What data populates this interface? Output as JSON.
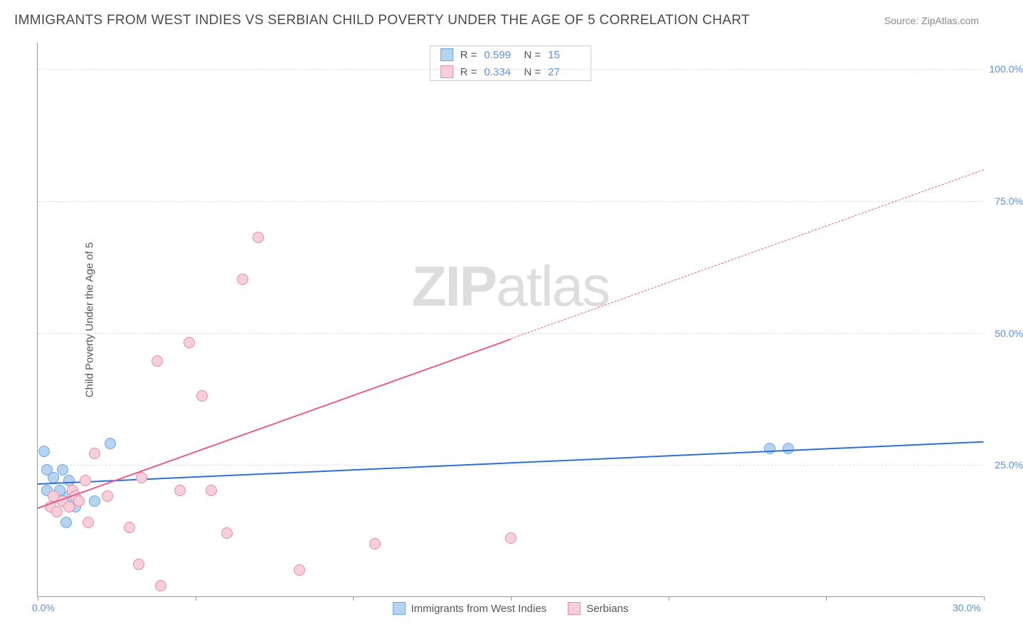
{
  "header": {
    "title": "IMMIGRANTS FROM WEST INDIES VS SERBIAN CHILD POVERTY UNDER THE AGE OF 5 CORRELATION CHART",
    "source": "Source: ZipAtlas.com"
  },
  "chart": {
    "type": "scatter",
    "ylabel": "Child Poverty Under the Age of 5",
    "xlim": [
      0,
      30
    ],
    "ylim": [
      0,
      105
    ],
    "xticks": [
      0,
      5,
      10,
      15,
      20,
      25,
      30
    ],
    "xtick_labels": [
      "0.0%",
      "",
      "",
      "",
      "",
      "",
      "30.0%"
    ],
    "yticks": [
      25,
      50,
      75,
      100
    ],
    "ytick_labels": [
      "25.0%",
      "50.0%",
      "75.0%",
      "100.0%"
    ],
    "grid_color": "#dddddd",
    "axis_color": "#999999",
    "background": "#ffffff",
    "marker_radius": 8,
    "series": [
      {
        "name": "Immigrants from West Indies",
        "fill": "#b6d4f2",
        "stroke": "#6aa5e0",
        "line_color": "#2f6fd4",
        "r_value": "0.599",
        "n_value": "15",
        "points": [
          [
            0.2,
            27.5
          ],
          [
            0.3,
            24
          ],
          [
            0.3,
            20
          ],
          [
            0.5,
            22.5
          ],
          [
            0.7,
            20
          ],
          [
            0.8,
            24
          ],
          [
            0.8,
            18
          ],
          [
            0.9,
            14
          ],
          [
            1.0,
            22
          ],
          [
            1.0,
            19
          ],
          [
            1.2,
            17
          ],
          [
            1.8,
            18
          ],
          [
            2.3,
            29
          ],
          [
            23.2,
            28
          ],
          [
            23.8,
            28
          ]
        ],
        "regression": {
          "x0": 0,
          "y0": 21.5,
          "x1": 30,
          "y1": 29.5,
          "solid_until_x": 30
        }
      },
      {
        "name": "Serbians",
        "fill": "#f6cfda",
        "stroke": "#e68aaa",
        "line_color": "#e85d8c",
        "r_value": "0.334",
        "n_value": "27",
        "points": [
          [
            0.4,
            17
          ],
          [
            0.5,
            19
          ],
          [
            0.6,
            16
          ],
          [
            0.8,
            18
          ],
          [
            1.0,
            17
          ],
          [
            1.1,
            20
          ],
          [
            1.2,
            19
          ],
          [
            1.3,
            18
          ],
          [
            1.5,
            22
          ],
          [
            1.6,
            14
          ],
          [
            1.8,
            27
          ],
          [
            2.2,
            19
          ],
          [
            2.9,
            13
          ],
          [
            3.2,
            6
          ],
          [
            3.3,
            22.5
          ],
          [
            3.8,
            44.5
          ],
          [
            3.9,
            2
          ],
          [
            4.5,
            20
          ],
          [
            4.8,
            48
          ],
          [
            5.2,
            38
          ],
          [
            5.5,
            20
          ],
          [
            6.0,
            12
          ],
          [
            6.5,
            60
          ],
          [
            7.0,
            68
          ],
          [
            8.3,
            5
          ],
          [
            10.7,
            10
          ],
          [
            15.0,
            11
          ]
        ],
        "regression": {
          "x0": 0,
          "y0": 17,
          "x1": 30,
          "y1": 81,
          "solid_until_x": 15
        }
      }
    ],
    "watermark": {
      "part1": "ZIP",
      "part2": "atlas"
    }
  },
  "stat_labels": {
    "r": "R  =",
    "n": "N  ="
  }
}
